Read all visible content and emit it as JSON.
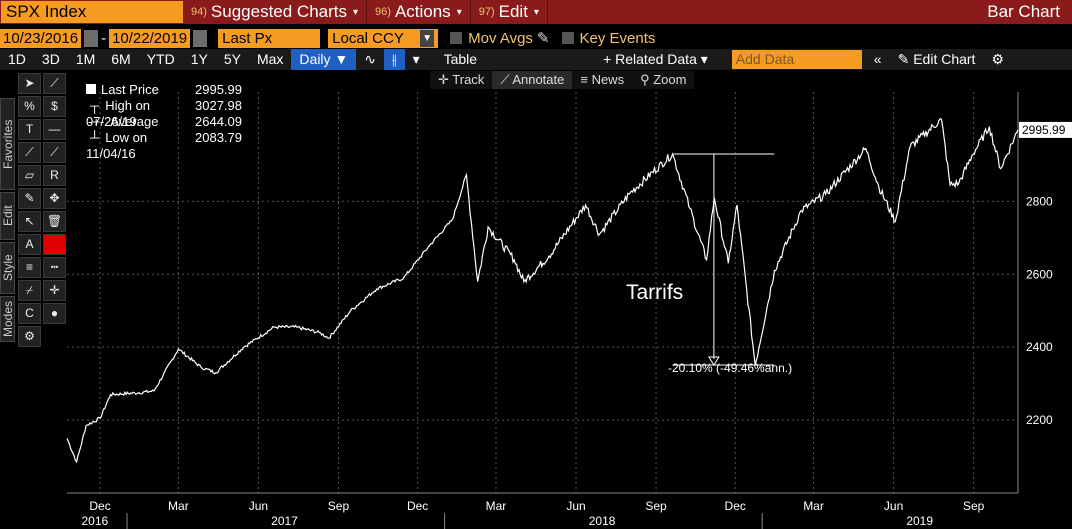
{
  "titlebar": {
    "ticker": "SPX Index",
    "menus": [
      {
        "num": "94)",
        "label": "Suggested Charts",
        "caret": "▾"
      },
      {
        "num": "96)",
        "label": "Actions",
        "caret": "▾"
      },
      {
        "num": "97)",
        "label": "Edit",
        "caret": "▾"
      }
    ],
    "right": "Bar Chart"
  },
  "range": {
    "start": "10/23/2016",
    "dash": "-",
    "end": "10/22/2019",
    "field": "Last Px",
    "currency": "Local CCY",
    "mov_avgs": "Mov Avgs",
    "key_events": "Key Events"
  },
  "periods": [
    "1D",
    "3D",
    "1M",
    "6M",
    "YTD",
    "1Y",
    "5Y",
    "Max"
  ],
  "frequency": "Daily ▼",
  "table_label": "Table",
  "related_data": "+ Related Data ▾",
  "add_data_placeholder": "Add Data",
  "edit_chart": "Edit Chart",
  "subtools": [
    "Track",
    "Annotate",
    "News",
    "Zoom"
  ],
  "sidetabs": [
    "Favorites",
    "Edit",
    "Style",
    "Modes"
  ],
  "legend": {
    "items": [
      {
        "label": "Last Price",
        "value": "2995.99"
      },
      {
        "label": "High on 07/26/19",
        "value": "3027.98"
      },
      {
        "label": "Average",
        "value": "2644.09"
      },
      {
        "label": "Low on 11/04/16",
        "value": "2083.79"
      }
    ]
  },
  "annotations": {
    "text": "Tarrifs",
    "text_color": "#e53935",
    "measure": "-20.10% (-49.46%ann.)",
    "last_price_tag": "2995.99"
  },
  "chart_data": {
    "type": "line",
    "ylim": [
      2000,
      3100
    ],
    "yticks": [
      2200,
      2400,
      2600,
      2800
    ],
    "xlim": [
      "2016-10-24",
      "2019-10-22"
    ],
    "xticks": [
      {
        "date": "2016-12-01",
        "label": "Dec"
      },
      {
        "date": "2017-03-01",
        "label": "Mar"
      },
      {
        "date": "2017-06-01",
        "label": "Jun"
      },
      {
        "date": "2017-09-01",
        "label": "Sep"
      },
      {
        "date": "2017-12-01",
        "label": "Dec"
      },
      {
        "date": "2018-03-01",
        "label": "Mar"
      },
      {
        "date": "2018-06-01",
        "label": "Jun"
      },
      {
        "date": "2018-09-01",
        "label": "Sep"
      },
      {
        "date": "2018-12-01",
        "label": "Dec"
      },
      {
        "date": "2019-03-01",
        "label": "Mar"
      },
      {
        "date": "2019-06-01",
        "label": "Jun"
      },
      {
        "date": "2019-09-01",
        "label": "Sep"
      }
    ],
    "years": [
      {
        "date": "2016-11-25",
        "label": "2016"
      },
      {
        "date": "2017-07-01",
        "label": "2017"
      },
      {
        "date": "2018-07-01",
        "label": "2018"
      },
      {
        "date": "2019-07-01",
        "label": "2019"
      }
    ],
    "grid": true,
    "series": [
      {
        "color": "#ffffff",
        "points": [
          [
            "2016-10-24",
            2150
          ],
          [
            "2016-11-04",
            2085
          ],
          [
            "2016-11-15",
            2185
          ],
          [
            "2016-12-01",
            2205
          ],
          [
            "2016-12-13",
            2270
          ],
          [
            "2017-01-15",
            2275
          ],
          [
            "2017-02-01",
            2280
          ],
          [
            "2017-03-01",
            2395
          ],
          [
            "2017-03-27",
            2345
          ],
          [
            "2017-04-13",
            2330
          ],
          [
            "2017-05-15",
            2400
          ],
          [
            "2017-06-19",
            2455
          ],
          [
            "2017-07-15",
            2455
          ],
          [
            "2017-08-10",
            2440
          ],
          [
            "2017-08-21",
            2425
          ],
          [
            "2017-09-15",
            2500
          ],
          [
            "2017-10-15",
            2560
          ],
          [
            "2017-11-15",
            2590
          ],
          [
            "2017-12-15",
            2680
          ],
          [
            "2018-01-10",
            2750
          ],
          [
            "2018-01-26",
            2873
          ],
          [
            "2018-02-08",
            2580
          ],
          [
            "2018-02-20",
            2730
          ],
          [
            "2018-03-22",
            2640
          ],
          [
            "2018-04-02",
            2580
          ],
          [
            "2018-05-01",
            2650
          ],
          [
            "2018-06-12",
            2790
          ],
          [
            "2018-06-28",
            2710
          ],
          [
            "2018-08-01",
            2820
          ],
          [
            "2018-09-20",
            2930
          ],
          [
            "2018-10-10",
            2780
          ],
          [
            "2018-10-29",
            2640
          ],
          [
            "2018-11-07",
            2810
          ],
          [
            "2018-11-23",
            2630
          ],
          [
            "2018-12-03",
            2790
          ],
          [
            "2018-12-24",
            2351
          ],
          [
            "2019-01-15",
            2610
          ],
          [
            "2019-02-15",
            2775
          ],
          [
            "2019-03-15",
            2820
          ],
          [
            "2019-04-30",
            2945
          ],
          [
            "2019-05-15",
            2840
          ],
          [
            "2019-06-03",
            2745
          ],
          [
            "2019-06-20",
            2950
          ],
          [
            "2019-07-26",
            3025
          ],
          [
            "2019-08-05",
            2845
          ],
          [
            "2019-08-15",
            2850
          ],
          [
            "2019-08-30",
            2925
          ],
          [
            "2019-09-19",
            3005
          ],
          [
            "2019-10-02",
            2890
          ],
          [
            "2019-10-22",
            2995.99
          ]
        ]
      }
    ],
    "drawdown": {
      "from": [
        "2018-09-20",
        2930
      ],
      "to": [
        "2018-12-24",
        2351
      ],
      "end": "2019-01-15"
    }
  }
}
